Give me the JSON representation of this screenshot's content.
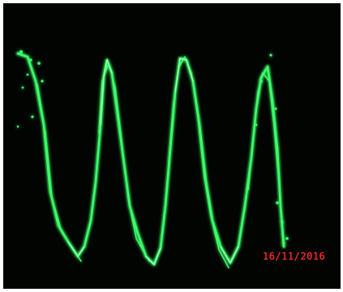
{
  "photo": {
    "subject": "oscilloscope-waveform",
    "background_color": "#010401",
    "trace_color": "#3cff6a",
    "trace_glow_color": "#b8ffc8",
    "date_stamp": {
      "text": "16/11/2016",
      "color": "#ff2a2a"
    }
  }
}
